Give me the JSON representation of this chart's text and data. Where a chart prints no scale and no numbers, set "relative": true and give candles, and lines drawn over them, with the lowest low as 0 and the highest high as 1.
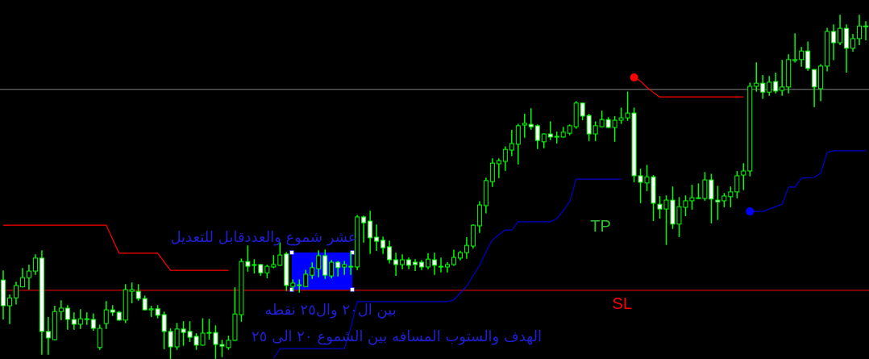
{
  "chart_data": {
    "type": "candlestick",
    "relative": true,
    "color": "#00ff00",
    "categories": [
      null,
      null,
      null,
      null,
      null,
      null,
      null,
      null,
      null,
      null,
      null,
      null,
      null,
      null,
      null,
      null,
      null,
      null,
      null,
      null,
      null,
      null,
      null,
      null,
      null,
      null,
      null,
      null,
      null,
      null,
      null,
      null,
      null,
      null,
      null,
      null,
      null,
      null,
      null,
      null,
      null,
      null,
      null,
      null,
      null,
      null,
      null,
      null,
      null,
      null,
      null,
      null,
      null,
      null,
      null,
      null,
      null,
      null,
      null,
      null,
      null,
      null,
      null,
      null,
      null,
      null,
      null,
      null,
      null,
      null,
      null,
      null,
      null,
      null,
      null,
      null,
      null,
      null,
      null,
      null,
      null,
      null,
      null,
      null,
      null,
      null,
      null,
      null,
      null,
      null,
      null,
      null,
      null,
      null,
      null,
      null,
      null,
      null,
      null,
      null,
      null,
      null,
      null,
      null,
      null,
      null,
      null,
      null,
      null,
      null,
      null,
      null,
      null,
      null,
      null,
      null,
      null,
      null,
      null,
      null,
      null,
      null,
      null,
      null,
      null,
      null,
      null,
      null,
      null,
      null,
      null,
      null,
      null,
      null,
      null
    ],
    "ohlc": [
      [
        0.228,
        0.254,
        0.115,
        0.153
      ],
      [
        0.153,
        0.184,
        0.101,
        0.176
      ],
      [
        0.176,
        0.221,
        0.158,
        0.212
      ],
      [
        0.208,
        0.261,
        0.208,
        0.235
      ],
      [
        0.235,
        0.271,
        0.202,
        0.254
      ],
      [
        0.254,
        0.301,
        0.245,
        0.292
      ],
      [
        0.292,
        0.313,
        0.012,
        0.078
      ],
      [
        0.078,
        0.118,
        0.012,
        0.059
      ],
      [
        0.054,
        0.151,
        0.054,
        0.136
      ],
      [
        0.136,
        0.167,
        0.113,
        0.146
      ],
      [
        0.146,
        0.153,
        0.085,
        0.113
      ],
      [
        0.113,
        0.132,
        0.085,
        0.099
      ],
      [
        0.099,
        0.141,
        0.087,
        0.115
      ],
      [
        0.113,
        0.132,
        0.099,
        0.115
      ],
      [
        0.113,
        0.129,
        0.082,
        0.087
      ],
      [
        0.031,
        0.096,
        0.026,
        0.087
      ],
      [
        0.101,
        0.165,
        0.087,
        0.141
      ],
      [
        0.141,
        0.153,
        0.125,
        0.134
      ],
      [
        0.134,
        0.136,
        0.111,
        0.111
      ],
      [
        0.111,
        0.214,
        0.104,
        0.2
      ],
      [
        0.195,
        0.219,
        0.162,
        0.2
      ],
      [
        0.195,
        0.214,
        0.169,
        0.174
      ],
      [
        0.174,
        0.181,
        0.141,
        0.141
      ],
      [
        0.141,
        0.151,
        0.122,
        0.144
      ],
      [
        0.144,
        0.153,
        0.118,
        0.125
      ],
      [
        0.127,
        0.134,
        0.028,
        0.078
      ],
      [
        0.078,
        0.085,
        0,
        0.033
      ],
      [
        0.033,
        0.101,
        0.026,
        0.085
      ],
      [
        0.085,
        0.106,
        0.038,
        0.075
      ],
      [
        0.078,
        0.106,
        0.049,
        0.061
      ],
      [
        0.064,
        0.071,
        0.026,
        0.038
      ],
      [
        0.038,
        0.115,
        0.038,
        0.073
      ],
      [
        0.073,
        0.113,
        0.056,
        0.075
      ],
      [
        0.075,
        0.094,
        0,
        0.04
      ],
      [
        0.04,
        0.052,
        0.005,
        0.035
      ],
      [
        0.031,
        0.064,
        0.026,
        0.052
      ],
      [
        0.052,
        0.205,
        0.052,
        0.129
      ],
      [
        0.127,
        0.289,
        0.108,
        0.282
      ],
      [
        0.282,
        0.327,
        0.254,
        0.268
      ],
      [
        0.271,
        0.287,
        0.249,
        0.273
      ],
      [
        0.273,
        0.273,
        0.242,
        0.249
      ],
      [
        0.249,
        0.271,
        0.235,
        0.268
      ],
      [
        0.266,
        0.299,
        0.264,
        0.273
      ],
      [
        0.271,
        0.336,
        0.271,
        0.301
      ],
      [
        0.304,
        0.308,
        0.198,
        0.212
      ],
      [
        0.209,
        0.228,
        0.198,
        0.219
      ],
      [
        0.212,
        0.228,
        0.193,
        0.214
      ],
      [
        0.209,
        0.256,
        0.209,
        0.245
      ],
      [
        0.242,
        0.278,
        0.233,
        0.264
      ],
      [
        0.261,
        0.313,
        0.238,
        0.299
      ],
      [
        0.299,
        0.315,
        0.233,
        0.242
      ],
      [
        0.24,
        0.285,
        0.235,
        0.28
      ],
      [
        0.28,
        0.282,
        0.24,
        0.264
      ],
      [
        0.266,
        0.282,
        0.245,
        0.273
      ],
      [
        0.268,
        0.308,
        0.245,
        0.268
      ],
      [
        0.266,
        0.416,
        0.259,
        0.412
      ],
      [
        0.412,
        0.414,
        0.339,
        0.395
      ],
      [
        0.4,
        0.428,
        0.306,
        0.351
      ],
      [
        0.353,
        0.388,
        0.315,
        0.341
      ],
      [
        0.344,
        0.353,
        0.306,
        0.322
      ],
      [
        0.325,
        0.341,
        0.278,
        0.287
      ],
      [
        0.287,
        0.306,
        0.242,
        0.273
      ],
      [
        0.273,
        0.301,
        0.261,
        0.287
      ],
      [
        0.287,
        0.292,
        0.261,
        0.271
      ],
      [
        0.28,
        0.287,
        0.256,
        0.273
      ],
      [
        0.28,
        0.285,
        0.259,
        0.266
      ],
      [
        0.266,
        0.304,
        0.261,
        0.289
      ],
      [
        0.287,
        0.306,
        0.245,
        0.271
      ],
      [
        0.268,
        0.292,
        0.252,
        0.268
      ],
      [
        0.266,
        0.278,
        0.252,
        0.273
      ],
      [
        0.273,
        0.315,
        0.271,
        0.294
      ],
      [
        0.292,
        0.311,
        0.287,
        0.308
      ],
      [
        0.308,
        0.351,
        0.292,
        0.329
      ],
      [
        0.327,
        0.388,
        0.322,
        0.388
      ],
      [
        0.386,
        0.456,
        0.367,
        0.447
      ],
      [
        0.445,
        0.525,
        0.424,
        0.518
      ],
      [
        0.515,
        0.581,
        0.501,
        0.569
      ],
      [
        0.567,
        0.581,
        0.527,
        0.576
      ],
      [
        0.574,
        0.616,
        0.548,
        0.609
      ],
      [
        0.607,
        0.664,
        0.591,
        0.626
      ],
      [
        0.624,
        0.682,
        0.567,
        0.678
      ],
      [
        0.68,
        0.711,
        0.645,
        0.685
      ],
      [
        0.682,
        0.727,
        0.668,
        0.675
      ],
      [
        0.678,
        0.68,
        0.612,
        0.635
      ],
      [
        0.631,
        0.654,
        0.614,
        0.654
      ],
      [
        0.654,
        0.689,
        0.638,
        0.645
      ],
      [
        0.647,
        0.659,
        0.628,
        0.647
      ],
      [
        0.645,
        0.673,
        0.645,
        0.659
      ],
      [
        0.656,
        0.68,
        0.652,
        0.678
      ],
      [
        0.675,
        0.748,
        0.671,
        0.744
      ],
      [
        0.744,
        0.744,
        0.696,
        0.706
      ],
      [
        0.708,
        0.711,
        0.635,
        0.654
      ],
      [
        0.654,
        0.689,
        0.635,
        0.678
      ],
      [
        0.675,
        0.72,
        0.675,
        0.696
      ],
      [
        0.696,
        0.701,
        0.673,
        0.673
      ],
      [
        0.673,
        0.704,
        0.633,
        0.694
      ],
      [
        0.694,
        0.729,
        0.685,
        0.701
      ],
      [
        0.701,
        0.776,
        0.694,
        0.715
      ],
      [
        0.715,
        0.729,
        0.515,
        0.532
      ],
      [
        0.532,
        0.551,
        0.454,
        0.513
      ],
      [
        0.511,
        0.562,
        0.489,
        0.529
      ],
      [
        0.529,
        0.532,
        0.402,
        0.452
      ],
      [
        0.449,
        0.471,
        0.409,
        0.435
      ],
      [
        0.435,
        0.473,
        0.332,
        0.461
      ],
      [
        0.461,
        0.499,
        0.379,
        0.391
      ],
      [
        0.391,
        0.468,
        0.355,
        0.442
      ],
      [
        0.44,
        0.473,
        0.416,
        0.459
      ],
      [
        0.459,
        0.504,
        0.435,
        0.468
      ],
      [
        0.466,
        0.508,
        0.466,
        0.468
      ],
      [
        0.466,
        0.541,
        0.461,
        0.52
      ],
      [
        0.52,
        0.536,
        0.395,
        0.464
      ],
      [
        0.461,
        0.501,
        0.405,
        0.456
      ],
      [
        0.459,
        0.48,
        0.442,
        0.473
      ],
      [
        0.471,
        0.499,
        0.442,
        0.485
      ],
      [
        0.485,
        0.544,
        0.468,
        0.532
      ],
      [
        0.534,
        0.567,
        0.492,
        0.546
      ],
      [
        0.546,
        0.802,
        0.532,
        0.793
      ],
      [
        0.793,
        0.861,
        0.779,
        0.802
      ],
      [
        0.802,
        0.824,
        0.758,
        0.776
      ],
      [
        0.776,
        0.821,
        0.767,
        0.805
      ],
      [
        0.807,
        0.831,
        0.774,
        0.779
      ],
      [
        0.781,
        0.868,
        0.767,
        0.791
      ],
      [
        0.791,
        0.885,
        0.774,
        0.871
      ],
      [
        0.868,
        0.946,
        0.864,
        0.871
      ],
      [
        0.871,
        0.906,
        0.852,
        0.896
      ],
      [
        0.896,
        0.922,
        0.84,
        0.845
      ],
      [
        0.842,
        0.842,
        0.734,
        0.791
      ],
      [
        0.786,
        0.856,
        0.751,
        0.852
      ],
      [
        0.852,
        0.962,
        0.838,
        0.953
      ],
      [
        0.953,
        0.972,
        0.871,
        0.92
      ],
      [
        0.92,
        1,
        0.915,
        0.962
      ],
      [
        0.962,
        0.972,
        0.835,
        0.904
      ],
      [
        0.904,
        0.944,
        0.896,
        0.932
      ],
      [
        0.932,
        1,
        0.915,
        0.969
      ],
      [
        0.967,
        0.981,
        0.929,
        0.969
      ]
    ],
    "series": [
      {
        "type": "line",
        "color": "#ff0000",
        "values": [
          0.388,
          0.388,
          0.388,
          0.388,
          0.388,
          0.388,
          0.388,
          0.388,
          0.388,
          0.388,
          0.388,
          0.388,
          0.388,
          0.388,
          0.388,
          0.388,
          0.388,
          0.347,
          0.306,
          0.306,
          0.306,
          0.306,
          0.306,
          0.306,
          0.306,
          0.281,
          0.256,
          0.256,
          0.256,
          0.256,
          0.256,
          0.256,
          0.256,
          0.256,
          0.256,
          0.256,
          null,
          null,
          null,
          null,
          null,
          null,
          null,
          null,
          null,
          null,
          null,
          null,
          null,
          null,
          null,
          null,
          null,
          null,
          null,
          null,
          null,
          null,
          null,
          null,
          null,
          null,
          null,
          null,
          null,
          null,
          null,
          null,
          null,
          null,
          null,
          null,
          null,
          null,
          null,
          null,
          null,
          null,
          null,
          null,
          null,
          null,
          null,
          null,
          null,
          null,
          null,
          null,
          null,
          null,
          null,
          null,
          null,
          null,
          null,
          null,
          null,
          null,
          null,
          null,
          null,
          null,
          null,
          null,
          null,
          null,
          null,
          null,
          null,
          null,
          null,
          null,
          null,
          null,
          null,
          null,
          null,
          null,
          null,
          null,
          null,
          null,
          null,
          null,
          null,
          null,
          null,
          null,
          null,
          null,
          null,
          null,
          null,
          null,
          null
        ]
      },
      {
        "type": "line",
        "color": "#ff0000",
        "values": [
          null,
          null,
          null,
          null,
          null,
          null,
          null,
          null,
          null,
          null,
          null,
          null,
          null,
          null,
          null,
          null,
          null,
          null,
          null,
          null,
          null,
          null,
          null,
          null,
          null,
          null,
          null,
          null,
          null,
          null,
          null,
          null,
          null,
          null,
          null,
          null,
          null,
          null,
          null,
          null,
          null,
          null,
          null,
          null,
          null,
          null,
          null,
          null,
          null,
          null,
          null,
          null,
          null,
          null,
          null,
          null,
          null,
          null,
          null,
          null,
          null,
          null,
          null,
          null,
          null,
          null,
          null,
          null,
          null,
          null,
          null,
          null,
          null,
          null,
          null,
          null,
          null,
          null,
          null,
          null,
          null,
          null,
          null,
          null,
          null,
          null,
          null,
          null,
          null,
          null,
          null,
          null,
          null,
          null,
          null,
          null,
          null,
          null,
          0.819,
          0.808,
          0.79,
          0.775,
          0.762,
          0.762,
          0.762,
          0.762,
          0.762,
          0.762,
          0.762,
          0.762,
          0.762,
          0.762,
          0.762,
          0.762,
          0.762,
          0.762,
          null,
          null,
          null,
          null,
          null,
          null,
          null,
          null,
          null,
          null,
          null,
          null,
          null,
          null,
          null,
          null,
          null,
          null,
          null
        ]
      },
      {
        "type": "line",
        "color": "#0000cc",
        "values": [
          null,
          null,
          null,
          null,
          null,
          null,
          null,
          null,
          null,
          null,
          null,
          null,
          null,
          null,
          null,
          null,
          null,
          null,
          null,
          null,
          null,
          null,
          null,
          null,
          null,
          null,
          null,
          null,
          null,
          null,
          null,
          null,
          null,
          null,
          null,
          null,
          null,
          null,
          null,
          null,
          null,
          null,
          0,
          0.028,
          0.028,
          0.028,
          0.028,
          0.028,
          0.028,
          0.028,
          0.028,
          0.028,
          0.028,
          0.028,
          0.09,
          0.165,
          0.165,
          0.165,
          0.165,
          0.165,
          0.165,
          0.165,
          0.165,
          0.165,
          0.165,
          0.165,
          0.165,
          0.165,
          0.165,
          0.165,
          0.17,
          0.19,
          0.21,
          0.24,
          0.27,
          0.31,
          0.345,
          0.36,
          0.374,
          0.374,
          0.398,
          0.398,
          0.398,
          0.398,
          0.398,
          0.398,
          0.407,
          0.43,
          0.456,
          0.522,
          0.522,
          0.522,
          0.522,
          0.522,
          0.522,
          0.522,
          0.522,
          null,
          null,
          null,
          null,
          null,
          null,
          null,
          null,
          null,
          null,
          null,
          null,
          null,
          null,
          null,
          null,
          null,
          null,
          null,
          null,
          null,
          null,
          null,
          null,
          null,
          null,
          null,
          null,
          null,
          null,
          null,
          null,
          null,
          null,
          null,
          null,
          null,
          null
        ]
      },
      {
        "type": "line",
        "color": "#0000cc",
        "values": [
          null,
          null,
          null,
          null,
          null,
          null,
          null,
          null,
          null,
          null,
          null,
          null,
          null,
          null,
          null,
          null,
          null,
          null,
          null,
          null,
          null,
          null,
          null,
          null,
          null,
          null,
          null,
          null,
          null,
          null,
          null,
          null,
          null,
          null,
          null,
          null,
          null,
          null,
          null,
          null,
          null,
          null,
          null,
          null,
          null,
          null,
          null,
          null,
          null,
          null,
          null,
          null,
          null,
          null,
          null,
          null,
          null,
          null,
          null,
          null,
          null,
          null,
          null,
          null,
          null,
          null,
          null,
          null,
          null,
          null,
          null,
          null,
          null,
          null,
          null,
          null,
          null,
          null,
          null,
          null,
          null,
          null,
          null,
          null,
          null,
          null,
          null,
          null,
          null,
          null,
          null,
          null,
          null,
          null,
          null,
          null,
          null,
          null,
          null,
          null,
          null,
          null,
          null,
          null,
          null,
          null,
          null,
          null,
          null,
          null,
          null,
          null,
          null,
          null,
          null,
          null,
          0.428,
          0.428,
          0.428,
          0.435,
          0.442,
          0.449,
          0.499,
          0.499,
          0.525,
          0.526,
          0.527,
          0.54,
          0.6,
          0.605,
          0.605,
          0.605,
          0.605,
          0.605,
          0.605
        ]
      },
      {
        "type": "scatter",
        "color": "#ff0000",
        "values": [
          null,
          null,
          null,
          null,
          null,
          null,
          null,
          null,
          null,
          null,
          null,
          null,
          null,
          null,
          null,
          null,
          null,
          null,
          null,
          null,
          null,
          null,
          null,
          null,
          null,
          null,
          null,
          null,
          null,
          null,
          null,
          null,
          null,
          null,
          null,
          null,
          null,
          null,
          null,
          null,
          null,
          null,
          null,
          null,
          null,
          null,
          null,
          null,
          null,
          null,
          null,
          null,
          null,
          null,
          null,
          null,
          null,
          null,
          null,
          null,
          null,
          null,
          null,
          null,
          null,
          null,
          null,
          null,
          null,
          null,
          null,
          null,
          null,
          null,
          null,
          null,
          null,
          null,
          null,
          null,
          null,
          null,
          null,
          null,
          null,
          null,
          null,
          null,
          null,
          null,
          null,
          null,
          null,
          null,
          null,
          null,
          null,
          null,
          0.819,
          null,
          null,
          null,
          null,
          null,
          null,
          null,
          null,
          null,
          null,
          null,
          null,
          null,
          null,
          null,
          null,
          null,
          null,
          null,
          null,
          null,
          null,
          null,
          null,
          null,
          null,
          null,
          null,
          null,
          null,
          null,
          null,
          null,
          null,
          null,
          null
        ]
      },
      {
        "type": "scatter",
        "color": "#0000ff",
        "values": [
          null,
          null,
          null,
          null,
          null,
          null,
          null,
          null,
          null,
          null,
          null,
          null,
          null,
          null,
          null,
          null,
          null,
          null,
          null,
          null,
          null,
          null,
          null,
          null,
          null,
          null,
          null,
          null,
          null,
          null,
          null,
          null,
          null,
          null,
          null,
          null,
          null,
          null,
          null,
          null,
          null,
          null,
          null,
          null,
          null,
          null,
          null,
          null,
          null,
          null,
          null,
          null,
          null,
          null,
          null,
          null,
          null,
          null,
          null,
          null,
          null,
          null,
          null,
          null,
          null,
          null,
          null,
          null,
          null,
          null,
          null,
          null,
          null,
          null,
          null,
          null,
          null,
          null,
          null,
          null,
          null,
          null,
          null,
          null,
          null,
          null,
          null,
          null,
          null,
          null,
          null,
          null,
          null,
          null,
          null,
          null,
          null,
          null,
          null,
          null,
          null,
          null,
          null,
          null,
          null,
          null,
          null,
          null,
          null,
          null,
          null,
          null,
          null,
          null,
          null,
          null,
          0.428,
          null,
          null,
          null,
          null,
          null,
          null,
          null,
          null,
          null,
          null,
          null,
          null,
          null,
          null,
          null,
          null,
          null,
          null
        ]
      }
    ],
    "ref_lines": [
      {
        "axis": "y",
        "value": 0.784,
        "color": "#808080"
      },
      {
        "axis": "y",
        "value": 0.198,
        "color": "#ff0000",
        "label": "SL"
      }
    ],
    "annotations": [
      "عشر شموع والعددقابل للتعديل",
      "بين ال٢٠ وال٢٥ نقطه",
      "الهدف والستوب المسافه بين الشموع ٢٠ الى ٢٥",
      "TP"
    ]
  }
}
